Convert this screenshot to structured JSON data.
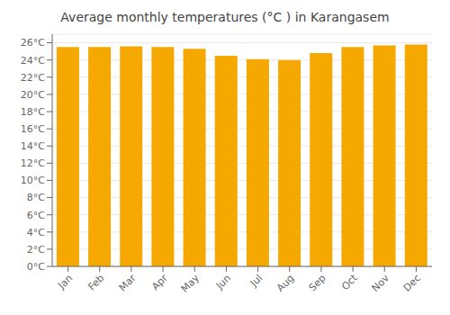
{
  "chart_data": {
    "type": "bar",
    "title": "Average monthly temperatures (°C ) in Karangasem",
    "categories": [
      "Jan",
      "Feb",
      "Mar",
      "Apr",
      "May",
      "Jun",
      "Jul",
      "Aug",
      "Sep",
      "Oct",
      "Nov",
      "Dec"
    ],
    "values": [
      25.5,
      25.5,
      25.6,
      25.5,
      25.3,
      24.5,
      24.1,
      24.0,
      24.8,
      25.5,
      25.7,
      25.8
    ],
    "color": "#F5A800",
    "ylim": [
      0,
      27
    ],
    "yticks": [
      {
        "value": 0,
        "label": "0°C"
      },
      {
        "value": 2,
        "label": "2°C"
      },
      {
        "value": 4,
        "label": "4°C"
      },
      {
        "value": 6,
        "label": "6°C"
      },
      {
        "value": 8,
        "label": "8°C"
      },
      {
        "value": 10,
        "label": "10°C"
      },
      {
        "value": 12,
        "label": "12°C"
      },
      {
        "value": 14,
        "label": "14°C"
      },
      {
        "value": 16,
        "label": "16°C"
      },
      {
        "value": 18,
        "label": "18°C"
      },
      {
        "value": 20,
        "label": "20°C"
      },
      {
        "value": 22,
        "label": "22°C"
      },
      {
        "value": 24,
        "label": "24°C"
      },
      {
        "value": 26,
        "label": "26°C"
      }
    ],
    "grid": true
  }
}
